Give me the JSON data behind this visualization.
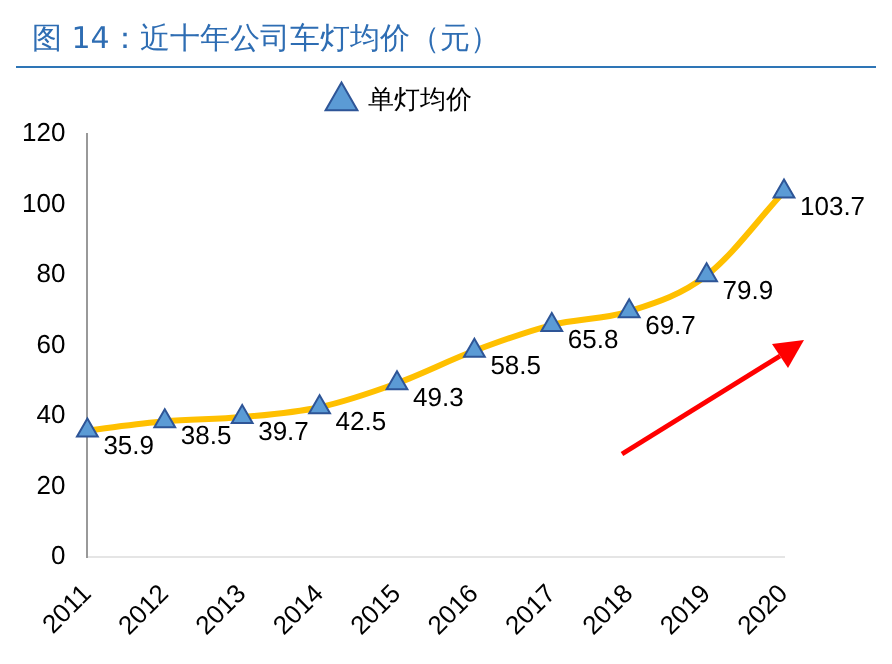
{
  "chart_data": {
    "type": "line",
    "title": "图 14：近十年公司车灯均价（元）",
    "categories": [
      "2011",
      "2012",
      "2013",
      "2014",
      "2015",
      "2016",
      "2017",
      "2018",
      "2019",
      "2020"
    ],
    "series": [
      {
        "name": "单灯均价",
        "color": "#ffc000",
        "values": [
          35.9,
          38.5,
          39.7,
          42.5,
          49.3,
          58.5,
          65.8,
          69.7,
          79.9,
          103.7
        ]
      }
    ],
    "ylim": [
      0,
      120
    ],
    "yticks": [
      0,
      20,
      40,
      60,
      80,
      100,
      120
    ],
    "grid": false,
    "legend": "top",
    "marker": "triangle",
    "data_labels": true
  }
}
